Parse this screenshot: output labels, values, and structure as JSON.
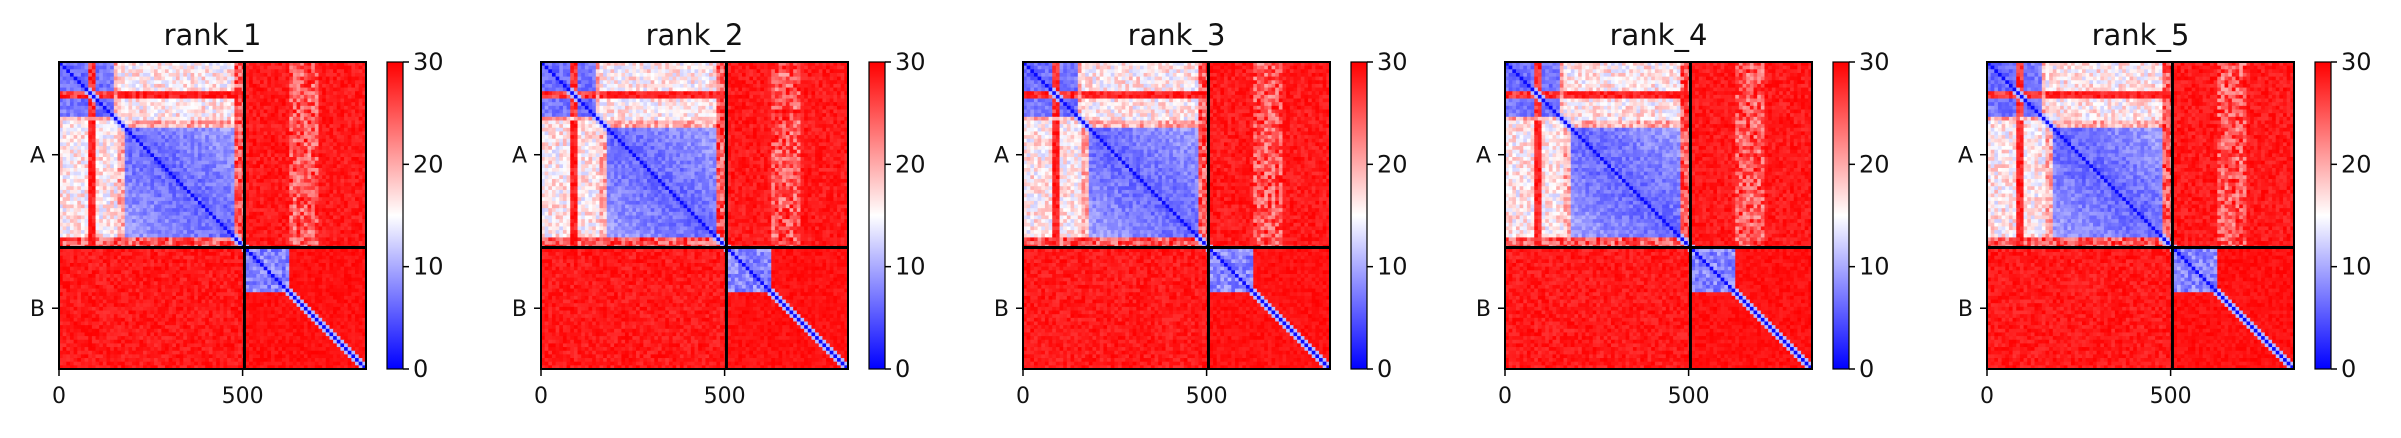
{
  "chart_data": {
    "type": "heatmap",
    "panels": [
      {
        "title": "rank_1"
      },
      {
        "title": "rank_2"
      },
      {
        "title": "rank_3"
      },
      {
        "title": "rank_4"
      },
      {
        "title": "rank_5"
      }
    ],
    "xticks": [
      0,
      500
    ],
    "xlim": [
      0,
      836
    ],
    "ylim": [
      836,
      0
    ],
    "chain_boundary": 505,
    "chains": [
      {
        "label": "A",
        "start": 0,
        "end": 505
      },
      {
        "label": "B",
        "start": 505,
        "end": 836
      }
    ],
    "colorbar": {
      "ticks": [
        0,
        10,
        20,
        30
      ],
      "range": [
        0,
        30
      ],
      "colors": [
        "#0000ff",
        "#ffffff",
        "#ff0000"
      ]
    },
    "matrix_description_values": {
      "intra_domain_low": 6,
      "inter_domain_high": 30
    }
  }
}
